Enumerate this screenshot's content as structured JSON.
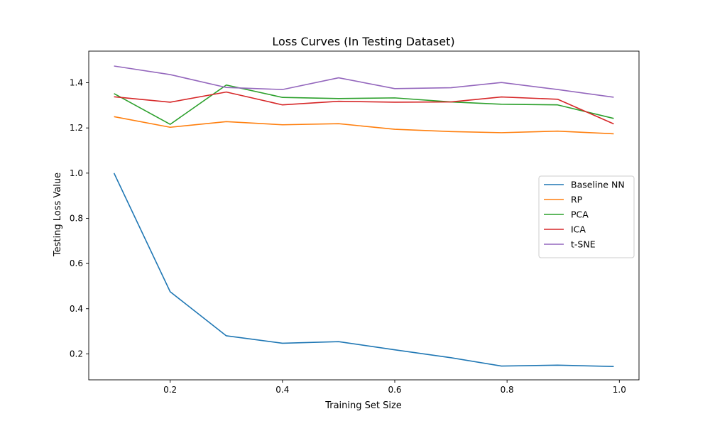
{
  "chart_data": {
    "type": "line",
    "title": "Loss Curves (In Testing Dataset)",
    "xlabel": "Training Set Size",
    "ylabel": "Testing Loss Value",
    "xlim": [
      0.055,
      1.035
    ],
    "ylim": [
      0.085,
      1.54
    ],
    "xticks": [
      {
        "value": 0.2,
        "label": "0.2"
      },
      {
        "value": 0.4,
        "label": "0.4"
      },
      {
        "value": 0.6,
        "label": "0.6"
      },
      {
        "value": 0.8,
        "label": "0.8"
      },
      {
        "value": 1.0,
        "label": "1.0"
      }
    ],
    "yticks": [
      {
        "value": 0.2,
        "label": "0.2"
      },
      {
        "value": 0.4,
        "label": "0.4"
      },
      {
        "value": 0.6,
        "label": "0.6"
      },
      {
        "value": 0.8,
        "label": "0.8"
      },
      {
        "value": 1.0,
        "label": "1.0"
      },
      {
        "value": 1.2,
        "label": "1.2"
      },
      {
        "value": 1.4,
        "label": "1.4"
      }
    ],
    "grid": false,
    "legend_position": "center-right",
    "x": [
      0.1,
      0.2,
      0.3,
      0.4,
      0.5,
      0.6,
      0.7,
      0.79,
      0.89,
      0.99
    ],
    "series": [
      {
        "name": "Baseline NN",
        "color": "#1f77b4",
        "values": [
          1.0,
          0.475,
          0.28,
          0.247,
          0.254,
          0.218,
          0.183,
          0.146,
          0.15,
          0.144
        ]
      },
      {
        "name": "RP",
        "color": "#ff7f0e",
        "values": [
          1.25,
          1.203,
          1.228,
          1.214,
          1.219,
          1.194,
          1.184,
          1.179,
          1.186,
          1.174
        ]
      },
      {
        "name": "PCA",
        "color": "#2ca02c",
        "values": [
          1.352,
          1.216,
          1.39,
          1.335,
          1.33,
          1.333,
          1.315,
          1.305,
          1.302,
          1.242
        ]
      },
      {
        "name": "ICA",
        "color": "#d62728",
        "values": [
          1.338,
          1.314,
          1.359,
          1.302,
          1.318,
          1.314,
          1.315,
          1.337,
          1.327,
          1.218
        ]
      },
      {
        "name": "t-SNE",
        "color": "#9467bd",
        "values": [
          1.474,
          1.436,
          1.379,
          1.37,
          1.422,
          1.374,
          1.378,
          1.401,
          1.37,
          1.336
        ]
      }
    ]
  }
}
